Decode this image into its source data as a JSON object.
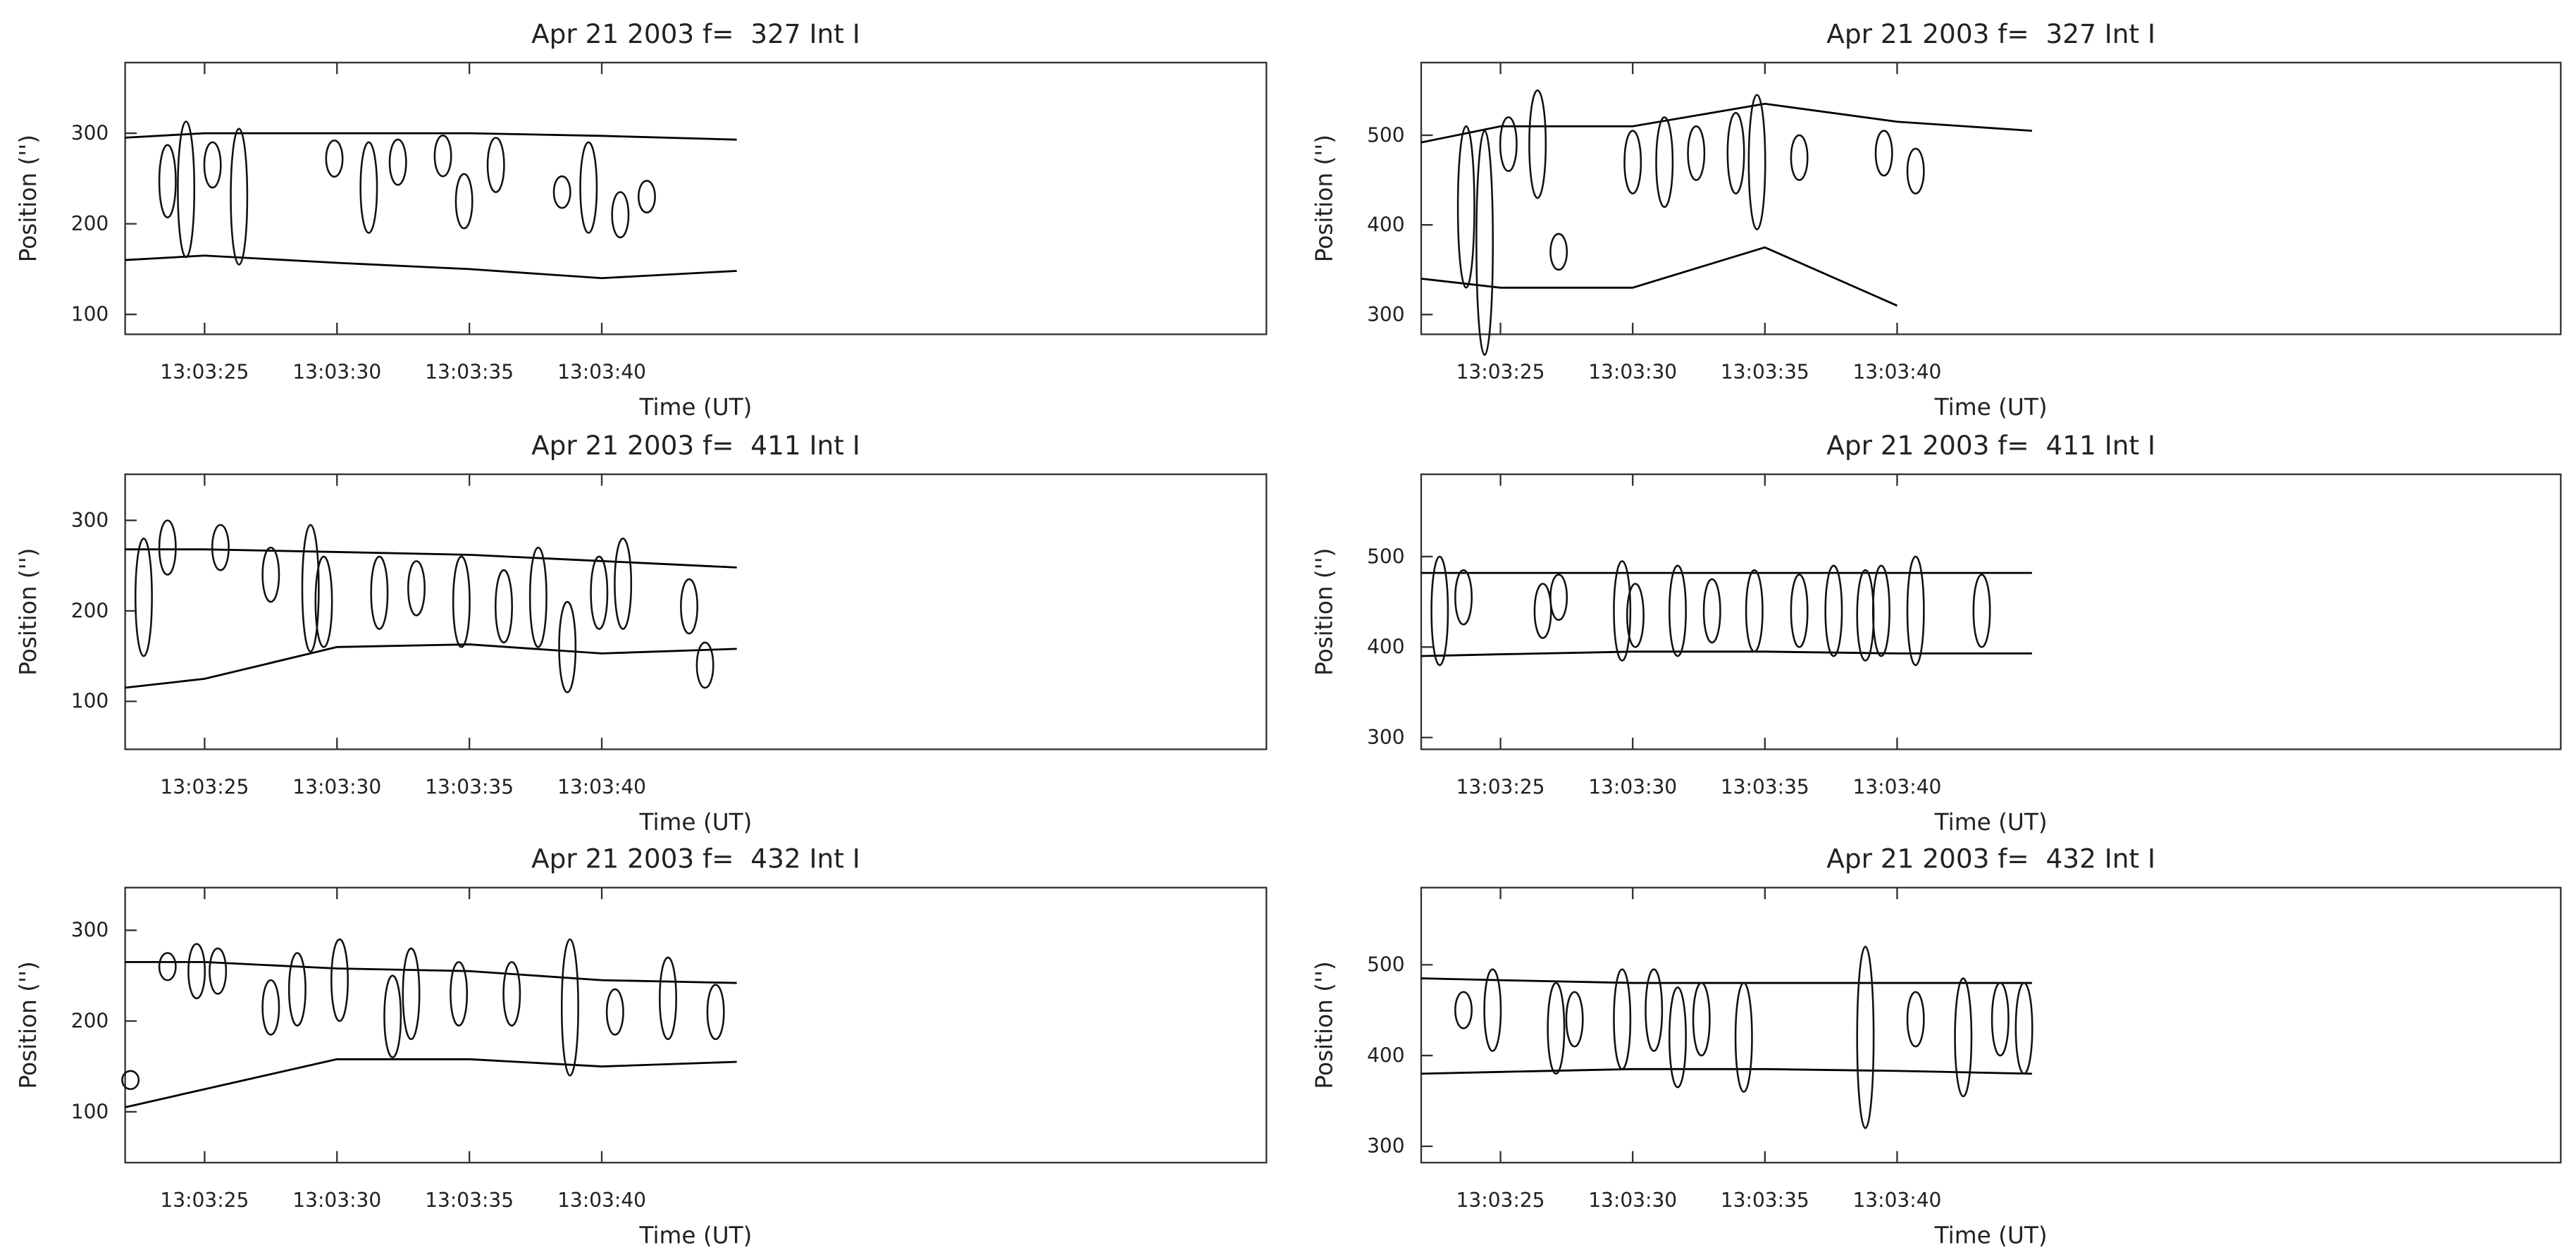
{
  "chart_data": [
    {
      "type": "contour",
      "title": "Apr 21 2003 f=  327 Int I",
      "x_label": "Time (UT)",
      "y_label": "Position ('')",
      "xlim": [
        47002,
        47045.1
      ],
      "ylim": [
        78,
        378
      ],
      "xticks": [
        {
          "value": 47005,
          "label": "13:03:25"
        },
        {
          "value": 47010,
          "label": "13:03:30"
        },
        {
          "value": 47015,
          "label": "13:03:35"
        },
        {
          "value": 47020,
          "label": "13:03:40"
        }
      ],
      "yticks": [
        100,
        200,
        300
      ],
      "x": [
        47002,
        47005,
        47010,
        47015,
        47020,
        47025.1
      ],
      "series": [
        {
          "color": "#000000",
          "values": [
            295,
            300,
            300,
            300,
            297,
            293
          ]
        },
        {
          "color": "#000000",
          "values": [
            160,
            165,
            157,
            150,
            140,
            148
          ]
        }
      ],
      "features": {
        "x": [
          47003.6,
          47004.3,
          47005.3,
          47006.3,
          47009.9,
          47011.2,
          47012.3,
          47014.0,
          47014.8,
          47016.0,
          47018.5,
          47019.5,
          47020.7,
          47021.7
        ],
        "y": [
          247,
          238,
          265,
          230,
          272,
          240,
          268,
          275,
          225,
          265,
          235,
          240,
          210,
          230
        ],
        "height": [
          80,
          150,
          50,
          150,
          40,
          100,
          50,
          45,
          60,
          60,
          35,
          100,
          50,
          35
        ]
      }
    },
    {
      "type": "contour",
      "title": "Apr 21 2003 f=  327 Int I",
      "x_label": "Time (UT)",
      "y_label": "Position ('')",
      "xlim": [
        47002,
        47045.1
      ],
      "ylim": [
        278,
        581
      ],
      "xticks": [
        {
          "value": 47005,
          "label": "13:03:25"
        },
        {
          "value": 47010,
          "label": "13:03:30"
        },
        {
          "value": 47015,
          "label": "13:03:35"
        },
        {
          "value": 47020,
          "label": "13:03:40"
        }
      ],
      "yticks": [
        300,
        400,
        500
      ],
      "x": [
        47002,
        47005,
        47010,
        47015,
        47020,
        47025.1
      ],
      "series": [
        {
          "color": "#000000",
          "values": [
            492,
            510,
            510,
            535,
            515,
            505
          ]
        },
        {
          "color": "#000000",
          "values": [
            340,
            330,
            330,
            375,
            310,
            null
          ]
        }
      ],
      "features": {
        "x": [
          47003.7,
          47004.4,
          47005.3,
          47006.4,
          47007.2,
          47010.0,
          47011.2,
          47012.4,
          47013.9,
          47014.7,
          47016.3,
          47019.5,
          47020.7
        ],
        "y": [
          420,
          380,
          490,
          490,
          370,
          470,
          470,
          480,
          480,
          470,
          475,
          480,
          460
        ],
        "height": [
          180,
          250,
          60,
          120,
          40,
          70,
          100,
          60,
          90,
          150,
          50,
          50,
          50
        ]
      }
    },
    {
      "type": "contour",
      "title": "Apr 21 2003 f=  411 Int I",
      "x_label": "Time (UT)",
      "y_label": "Position ('')",
      "xlim": [
        47002,
        47045.1
      ],
      "ylim": [
        47,
        351
      ],
      "xticks": [
        {
          "value": 47005,
          "label": "13:03:25"
        },
        {
          "value": 47010,
          "label": "13:03:30"
        },
        {
          "value": 47015,
          "label": "13:03:35"
        },
        {
          "value": 47020,
          "label": "13:03:40"
        }
      ],
      "yticks": [
        100,
        200,
        300
      ],
      "x": [
        47002,
        47005,
        47010,
        47015,
        47020,
        47025.1
      ],
      "series": [
        {
          "color": "#000000",
          "values": [
            268,
            268,
            265,
            262,
            255,
            248
          ]
        },
        {
          "color": "#000000",
          "values": [
            115,
            125,
            160,
            163,
            153,
            158
          ]
        }
      ],
      "features": {
        "x": [
          47002.7,
          47003.6,
          47005.6,
          47007.5,
          47009.0,
          47009.5,
          47011.6,
          47013.0,
          47014.7,
          47016.3,
          47017.6,
          47018.7,
          47019.9,
          47020.8,
          47023.3,
          47023.9
        ],
        "y": [
          215,
          270,
          270,
          240,
          225,
          210,
          220,
          225,
          210,
          205,
          215,
          160,
          220,
          230,
          205,
          140
        ],
        "height": [
          130,
          60,
          50,
          60,
          140,
          100,
          80,
          60,
          100,
          80,
          110,
          100,
          80,
          100,
          60,
          50
        ]
      }
    },
    {
      "type": "contour",
      "title": "Apr 21 2003 f=  411 Int I",
      "x_label": "Time (UT)",
      "y_label": "Position ('')",
      "xlim": [
        47002,
        47045.1
      ],
      "ylim": [
        287,
        591
      ],
      "xticks": [
        {
          "value": 47005,
          "label": "13:03:25"
        },
        {
          "value": 47010,
          "label": "13:03:30"
        },
        {
          "value": 47015,
          "label": "13:03:35"
        },
        {
          "value": 47020,
          "label": "13:03:40"
        }
      ],
      "yticks": [
        300,
        400,
        500
      ],
      "x": [
        47002,
        47005,
        47010,
        47015,
        47020,
        47025.1
      ],
      "series": [
        {
          "color": "#000000",
          "values": [
            482,
            482,
            482,
            482,
            482,
            482
          ]
        },
        {
          "color": "#000000",
          "values": [
            390,
            392,
            395,
            395,
            393,
            393
          ]
        }
      ],
      "features": {
        "x": [
          47002.7,
          47003.6,
          47006.6,
          47007.2,
          47009.6,
          47010.1,
          47011.7,
          47013.0,
          47014.6,
          47016.3,
          47017.6,
          47018.8,
          47019.4,
          47020.7,
          47023.2
        ],
        "y": [
          440,
          455,
          440,
          455,
          440,
          435,
          440,
          440,
          440,
          440,
          440,
          435,
          440,
          440,
          440
        ],
        "height": [
          120,
          60,
          60,
          50,
          110,
          70,
          100,
          70,
          90,
          80,
          100,
          100,
          100,
          120,
          80
        ]
      }
    },
    {
      "type": "contour",
      "title": "Apr 21 2003 f=  432 Int I",
      "x_label": "Time (UT)",
      "y_label": "Position ('')",
      "xlim": [
        47002,
        47045.1
      ],
      "ylim": [
        44,
        347
      ],
      "xticks": [
        {
          "value": 47005,
          "label": "13:03:25"
        },
        {
          "value": 47010,
          "label": "13:03:30"
        },
        {
          "value": 47015,
          "label": "13:03:35"
        },
        {
          "value": 47020,
          "label": "13:03:40"
        }
      ],
      "yticks": [
        100,
        200,
        300
      ],
      "x": [
        47002,
        47005,
        47010,
        47015,
        47020,
        47025.1
      ],
      "series": [
        {
          "color": "#000000",
          "values": [
            265,
            265,
            258,
            255,
            245,
            242
          ]
        },
        {
          "color": "#000000",
          "values": [
            105,
            125,
            158,
            158,
            150,
            155
          ]
        }
      ],
      "features": {
        "x": [
          47002.2,
          47003.6,
          47004.7,
          47005.5,
          47007.5,
          47008.5,
          47010.1,
          47012.1,
          47012.8,
          47014.6,
          47016.6,
          47018.8,
          47020.5,
          47022.5,
          47024.3
        ],
        "y": [
          135,
          260,
          255,
          255,
          215,
          235,
          245,
          205,
          230,
          230,
          230,
          215,
          210,
          225,
          210
        ],
        "height": [
          20,
          30,
          60,
          50,
          60,
          80,
          90,
          90,
          100,
          70,
          70,
          150,
          50,
          90,
          60
        ]
      }
    },
    {
      "type": "contour",
      "title": "Apr 21 2003 f=  432 Int I",
      "x_label": "Time (UT)",
      "y_label": "Position ('')",
      "xlim": [
        47002,
        47045.1
      ],
      "ylim": [
        282,
        585
      ],
      "xticks": [
        {
          "value": 47005,
          "label": "13:03:25"
        },
        {
          "value": 47010,
          "label": "13:03:30"
        },
        {
          "value": 47015,
          "label": "13:03:35"
        },
        {
          "value": 47020,
          "label": "13:03:40"
        }
      ],
      "yticks": [
        300,
        400,
        500
      ],
      "x": [
        47002,
        47005,
        47010,
        47015,
        47020,
        47025.1
      ],
      "series": [
        {
          "color": "#000000",
          "values": [
            485,
            483,
            480,
            480,
            480,
            480
          ]
        },
        {
          "color": "#000000",
          "values": [
            380,
            382,
            385,
            385,
            383,
            380
          ]
        }
      ],
      "features": {
        "x": [
          47003.6,
          47004.7,
          47007.1,
          47007.8,
          47009.6,
          47010.8,
          47011.7,
          47012.6,
          47014.2,
          47018.8,
          47020.7,
          47022.5,
          47023.9,
          47024.8
        ],
        "y": [
          450,
          450,
          430,
          440,
          440,
          450,
          420,
          440,
          420,
          420,
          440,
          420,
          440,
          430
        ],
        "height": [
          40,
          90,
          100,
          60,
          110,
          90,
          110,
          80,
          120,
          200,
          60,
          130,
          80,
          100
        ]
      }
    }
  ]
}
